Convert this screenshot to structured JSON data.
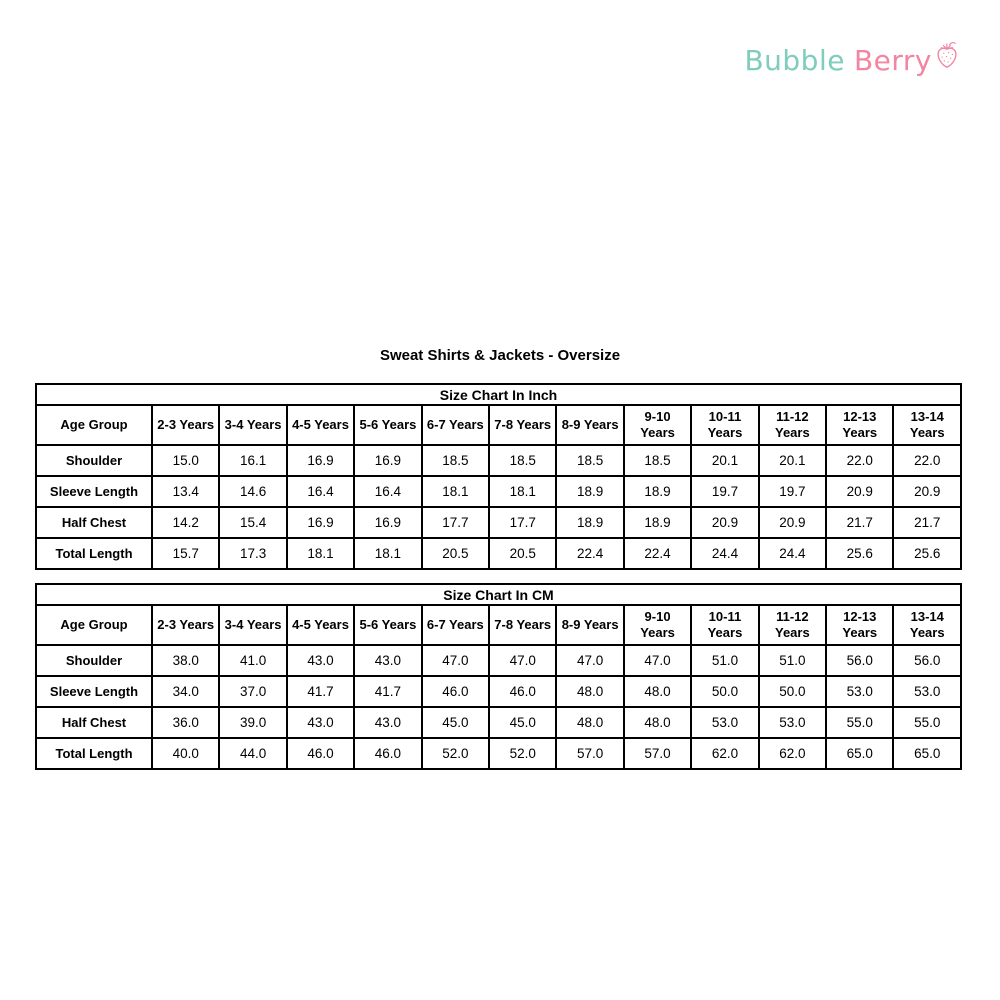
{
  "logo": {
    "part1": "Bubble",
    "part2": "Berry",
    "teal_color": "#7ECDBD",
    "pink_color": "#F285A2",
    "icon": "strawberry-icon"
  },
  "page_title": "Sweat Shirts & Jackets - Oversize",
  "tables": [
    {
      "title": "Size Chart In Inch",
      "columns": [
        "Age Group",
        "2-3 Years",
        "3-4 Years",
        "4-5 Years",
        "5-6 Years",
        "6-7 Years",
        "7-8 Years",
        "8-9 Years",
        "9-10\nYears",
        "10-11\nYears",
        "11-12\nYears",
        "12-13\nYears",
        "13-14\nYears"
      ],
      "rows": [
        {
          "label": "Shoulder",
          "values": [
            "15.0",
            "16.1",
            "16.9",
            "16.9",
            "18.5",
            "18.5",
            "18.5",
            "18.5",
            "20.1",
            "20.1",
            "22.0",
            "22.0"
          ]
        },
        {
          "label": "Sleeve Length",
          "values": [
            "13.4",
            "14.6",
            "16.4",
            "16.4",
            "18.1",
            "18.1",
            "18.9",
            "18.9",
            "19.7",
            "19.7",
            "20.9",
            "20.9"
          ]
        },
        {
          "label": "Half Chest",
          "values": [
            "14.2",
            "15.4",
            "16.9",
            "16.9",
            "17.7",
            "17.7",
            "18.9",
            "18.9",
            "20.9",
            "20.9",
            "21.7",
            "21.7"
          ]
        },
        {
          "label": "Total Length",
          "values": [
            "15.7",
            "17.3",
            "18.1",
            "18.1",
            "20.5",
            "20.5",
            "22.4",
            "22.4",
            "24.4",
            "24.4",
            "25.6",
            "25.6"
          ]
        }
      ]
    },
    {
      "title": "Size Chart In CM",
      "columns": [
        "Age Group",
        "2-3 Years",
        "3-4 Years",
        "4-5 Years",
        "5-6 Years",
        "6-7 Years",
        "7-8 Years",
        "8-9 Years",
        "9-10\nYears",
        "10-11\nYears",
        "11-12\nYears",
        "12-13\nYears",
        "13-14\nYears"
      ],
      "rows": [
        {
          "label": "Shoulder",
          "values": [
            "38.0",
            "41.0",
            "43.0",
            "43.0",
            "47.0",
            "47.0",
            "47.0",
            "47.0",
            "51.0",
            "51.0",
            "56.0",
            "56.0"
          ]
        },
        {
          "label": "Sleeve Length",
          "values": [
            "34.0",
            "37.0",
            "41.7",
            "41.7",
            "46.0",
            "46.0",
            "48.0",
            "48.0",
            "50.0",
            "50.0",
            "53.0",
            "53.0"
          ]
        },
        {
          "label": "Half Chest",
          "values": [
            "36.0",
            "39.0",
            "43.0",
            "43.0",
            "45.0",
            "45.0",
            "48.0",
            "48.0",
            "53.0",
            "53.0",
            "55.0",
            "55.0"
          ]
        },
        {
          "label": "Total Length",
          "values": [
            "40.0",
            "44.0",
            "46.0",
            "46.0",
            "52.0",
            "52.0",
            "57.0",
            "57.0",
            "62.0",
            "62.0",
            "65.0",
            "65.0"
          ]
        }
      ]
    }
  ]
}
